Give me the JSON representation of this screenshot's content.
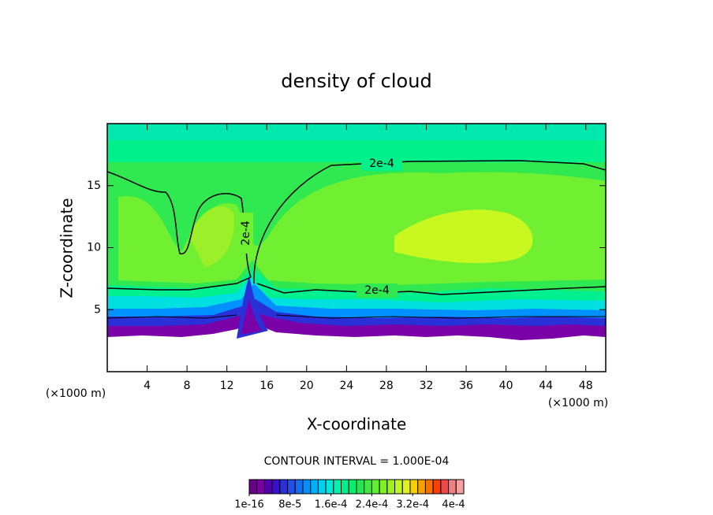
{
  "chart_data": {
    "type": "contour",
    "title": "density of cloud",
    "xlabel": "X-coordinate",
    "ylabel": "Z-coordinate",
    "x_unit_labels": [
      "(×1000 m)",
      "(×1000 m)"
    ],
    "xlim": [
      0,
      50
    ],
    "ylim": [
      0,
      20
    ],
    "xticks": [
      4,
      8,
      12,
      16,
      20,
      24,
      28,
      32,
      36,
      40,
      44,
      48
    ],
    "yticks": [
      5,
      10,
      15
    ],
    "contour_labels": [
      "2e-4",
      "2e-4",
      "2e-4"
    ],
    "contour_interval": "CONTOUR INTERVAL = 1.000E-04",
    "colorbar": {
      "lim": [
        0,
        0.00042
      ],
      "colors": [
        "#6a008a",
        "#7a00a8",
        "#5000b0",
        "#3a10c8",
        "#2a30d8",
        "#2050e8",
        "#1070f0",
        "#0090ff",
        "#00b0ff",
        "#00d0f0",
        "#00e8d8",
        "#00f0b0",
        "#00f090",
        "#00f070",
        "#20e850",
        "#40e840",
        "#60f030",
        "#80f020",
        "#a0f020",
        "#c0f820",
        "#e0f020",
        "#f8d000",
        "#f8a000",
        "#f87000",
        "#f84000",
        "#f04848",
        "#f08080",
        "#f8a0a0"
      ],
      "ticks": [
        {
          "value": 1e-16,
          "label": "1e-16"
        },
        {
          "value": 8e-05,
          "label": "8e-5"
        },
        {
          "value": 0.00016,
          "label": "1.6e-4"
        },
        {
          "value": 0.00024,
          "label": "2.4e-4"
        },
        {
          "value": 0.00032,
          "label": "3.2e-4"
        },
        {
          "value": 0.0004,
          "label": "4e-4"
        }
      ]
    }
  }
}
